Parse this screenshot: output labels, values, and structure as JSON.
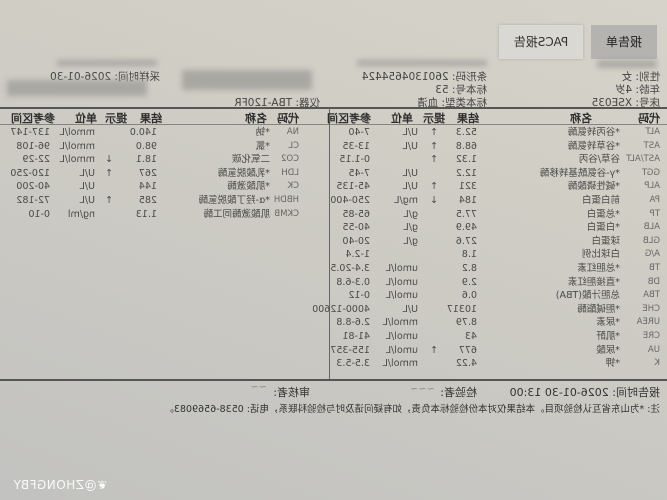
{
  "tabs": [
    {
      "label": "报告单",
      "active": true
    },
    {
      "label": "PACS报告",
      "active": false
    }
  ],
  "patient": {
    "gender": "性别: 女",
    "age": "年龄: 4岁",
    "bed": "床号: XSE035",
    "barcode": "条形码: 2601304654424",
    "specimen_no": "标本号: 53",
    "specimen_type": "标本类型: 血清",
    "instrument": "仪器: TBA-120FR",
    "sample_time": "采样时间: 2026-01-30"
  },
  "table_headers": {
    "code": "代码",
    "name": "名称",
    "result": "结果",
    "flag": "提示",
    "unit": "单位",
    "range": "参考区间"
  },
  "left_rows": [
    {
      "code": "ALT",
      "name": "*谷丙转氨酶",
      "result": "52.3",
      "flag": "↑",
      "unit": "U/L",
      "range": "7-40"
    },
    {
      "code": "AST",
      "name": "*谷草转氨酶",
      "result": "68.8",
      "flag": "↑",
      "unit": "U/L",
      "range": "13-35"
    },
    {
      "code": "AST/ALT",
      "name": "谷草/谷丙",
      "result": "1.32",
      "flag": "↑",
      "unit": "",
      "range": "0-1.15"
    },
    {
      "code": "GGT",
      "name": "*γ-谷氨酰基转移酶",
      "result": "12.2",
      "flag": "",
      "unit": "U/L",
      "range": "7-45"
    },
    {
      "code": "ALP",
      "name": "*碱性磷酸酶",
      "result": "321",
      "flag": "↑",
      "unit": "U/L",
      "range": "45-135"
    },
    {
      "code": "PA",
      "name": "前白蛋白",
      "result": "184",
      "flag": "↓",
      "unit": "mg/L",
      "range": "250-400"
    },
    {
      "code": "TP",
      "name": "*总蛋白",
      "result": "77.5",
      "flag": "",
      "unit": "g/L",
      "range": "65-85"
    },
    {
      "code": "ALB",
      "name": "*白蛋白",
      "result": "49.9",
      "flag": "",
      "unit": "g/L",
      "range": "40-55"
    },
    {
      "code": "GLB",
      "name": "球蛋白",
      "result": "27.6",
      "flag": "",
      "unit": "g/L",
      "range": "20-40"
    },
    {
      "code": "A/G",
      "name": "白球比例",
      "result": "1.8",
      "flag": "",
      "unit": "",
      "range": "1-2.4"
    },
    {
      "code": "TB",
      "name": "*总胆红素",
      "result": "8.2",
      "flag": "",
      "unit": "umol/L",
      "range": "3.4-20.5"
    },
    {
      "code": "DB",
      "name": "*直接胆红素",
      "result": "2.9",
      "flag": "",
      "unit": "umol/L",
      "range": "0.3-6.8"
    },
    {
      "code": "TBA",
      "name": "总胆汁酸(TBA)",
      "result": "0.6",
      "flag": "",
      "unit": "umol/L",
      "range": "0-12"
    },
    {
      "code": "CHE",
      "name": "*胆碱酯酶",
      "result": "10317",
      "flag": "",
      "unit": "U/L",
      "range": "4000-12600"
    },
    {
      "code": "UREA",
      "name": "*尿素",
      "result": "8.79",
      "flag": "",
      "unit": "mmol/L",
      "range": "2.6-8.8"
    },
    {
      "code": "CRE",
      "name": "*肌酐",
      "result": "43",
      "flag": "",
      "unit": "umol/L",
      "range": "41-81"
    },
    {
      "code": "UA",
      "name": "*尿酸",
      "result": "677",
      "flag": "↑",
      "unit": "umol/L",
      "range": "155-357"
    },
    {
      "code": "K",
      "name": "*钾",
      "result": "4.22",
      "flag": "",
      "unit": "mmol/L",
      "range": "3.5-5.3"
    }
  ],
  "right_rows": [
    {
      "code": "NA",
      "name": "*钠",
      "result": "140.0",
      "flag": "",
      "unit": "mmol/L",
      "range": "137-147"
    },
    {
      "code": "CL",
      "name": "*氯",
      "result": "98.0",
      "flag": "",
      "unit": "mmol/L",
      "range": "96-108"
    },
    {
      "code": "CO2",
      "name": "二氧化碳",
      "result": "18.1",
      "flag": "↓",
      "unit": "mmol/L",
      "range": "22-29"
    },
    {
      "code": "LDH",
      "name": "*乳酸脱氢酶",
      "result": "267",
      "flag": "↑",
      "unit": "U/L",
      "range": "120-250"
    },
    {
      "code": "CK",
      "name": "*肌酸激酶",
      "result": "144",
      "flag": "",
      "unit": "U/L",
      "range": "40-200"
    },
    {
      "code": "HBDH",
      "name": "*α-羟丁酸脱氢酶",
      "result": "285",
      "flag": "↑",
      "unit": "U/L",
      "range": "72-182"
    },
    {
      "code": "CKMB",
      "name": "肌酸激酶同工酶",
      "result": "1.13",
      "flag": "",
      "unit": "ng/ml",
      "range": "0-10"
    }
  ],
  "footer": {
    "report_time": "报告时间: 2026-01-30 13:00",
    "tester_label": "检验者:",
    "reviewer_label": "审核者:",
    "note": "注: *为山东省互认检验项目。本结果仅对本份检验标本负责，如有疑问请及时与检验科联系，电话: 0538-6569083。"
  },
  "watermark": "@ZHONGFBY"
}
